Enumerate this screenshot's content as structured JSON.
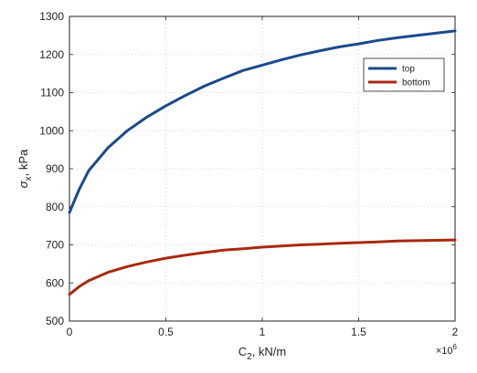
{
  "chart_data": {
    "type": "line",
    "xlabel_base": "C",
    "xlabel_sub": "2",
    "xlabel_rest": ", kN/m",
    "ylabel_base": "σ",
    "ylabel_sub": "x",
    "ylabel_rest": ", kPa",
    "x_exponent_base": "×10",
    "x_exponent_power": "6",
    "xlim": [
      0,
      2
    ],
    "ylim": [
      500,
      1300
    ],
    "x_ticks": [
      0,
      0.5,
      1,
      1.5,
      2
    ],
    "x_tick_labels": [
      "0",
      "0.5",
      "1",
      "1.5",
      "2"
    ],
    "y_ticks": [
      500,
      600,
      700,
      800,
      900,
      1000,
      1100,
      1200,
      1300
    ],
    "y_tick_labels": [
      "500",
      "600",
      "700",
      "800",
      "900",
      "1000",
      "1100",
      "1200",
      "1300"
    ],
    "grid": true,
    "legend_position": "top-right",
    "series": [
      {
        "name": "top",
        "color": "#1a4a8c",
        "x": [
          0,
          0.05,
          0.1,
          0.2,
          0.3,
          0.4,
          0.5,
          0.6,
          0.7,
          0.8,
          0.9,
          1.0,
          1.1,
          1.2,
          1.3,
          1.4,
          1.5,
          1.6,
          1.7,
          1.8,
          1.9,
          2.0
        ],
        "y": [
          785,
          845,
          895,
          955,
          1000,
          1035,
          1065,
          1092,
          1117,
          1138,
          1158,
          1172,
          1186,
          1199,
          1210,
          1220,
          1228,
          1237,
          1244,
          1250,
          1256,
          1262
        ]
      },
      {
        "name": "bottom",
        "color": "#a82a10",
        "x": [
          0,
          0.05,
          0.1,
          0.2,
          0.3,
          0.4,
          0.5,
          0.6,
          0.7,
          0.8,
          0.9,
          1.0,
          1.1,
          1.2,
          1.3,
          1.4,
          1.5,
          1.6,
          1.7,
          1.8,
          1.9,
          2.0
        ],
        "y": [
          570,
          590,
          606,
          628,
          643,
          655,
          665,
          673,
          680,
          686,
          690,
          694,
          697,
          700,
          702,
          704,
          706,
          708,
          710,
          711,
          712,
          713
        ]
      }
    ]
  }
}
